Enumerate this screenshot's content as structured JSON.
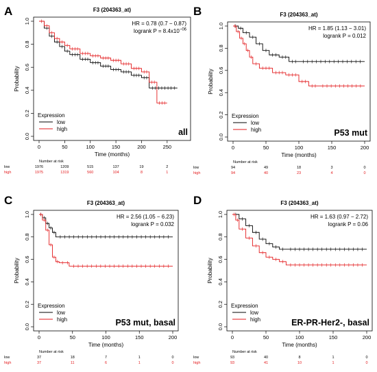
{
  "chart_data": [
    {
      "type": "line",
      "panel_letter": "A",
      "title": "F3 (204363_at)",
      "subtitle": "all",
      "xlabel": "Time (months)",
      "ylabel": "Probability",
      "x_ticks": [
        0,
        50,
        100,
        150,
        200,
        250
      ],
      "y_ticks": [
        "0.0",
        "0.2",
        "0.4",
        "0.6",
        "0.8",
        "1.0"
      ],
      "xlim": [
        0,
        285
      ],
      "ylim": [
        0,
        1
      ],
      "stats": {
        "hr": "HR = 0.78 (0.7 − 0.87)",
        "logrank": "logrank P = 8.4x10",
        "logrank_exp": "−06"
      },
      "legend": {
        "title": "Expression",
        "position": "bottom-left"
      },
      "series": [
        {
          "name": "low",
          "color": "#000000",
          "x": [
            0,
            10,
            20,
            30,
            40,
            50,
            60,
            80,
            100,
            120,
            140,
            160,
            180,
            200,
            215,
            270
          ],
          "y": [
            1.0,
            0.94,
            0.87,
            0.82,
            0.78,
            0.74,
            0.71,
            0.67,
            0.64,
            0.61,
            0.58,
            0.56,
            0.53,
            0.51,
            0.42,
            0.42
          ]
        },
        {
          "name": "high",
          "color": "#e31a1c",
          "x": [
            0,
            10,
            20,
            30,
            40,
            50,
            60,
            80,
            100,
            120,
            140,
            160,
            180,
            200,
            215,
            230,
            250
          ],
          "y": [
            1.0,
            0.96,
            0.9,
            0.85,
            0.82,
            0.79,
            0.76,
            0.72,
            0.7,
            0.68,
            0.66,
            0.63,
            0.59,
            0.56,
            0.47,
            0.29,
            0.29
          ]
        }
      ],
      "risk_table": {
        "header": "Number at risk",
        "low": [
          "1976",
          "1209",
          "515",
          "137",
          "19",
          "2"
        ],
        "high": [
          "1975",
          "1319",
          "560",
          "104",
          "8",
          "1"
        ]
      }
    },
    {
      "type": "line",
      "panel_letter": "B",
      "title": "F3 (204363_at)",
      "subtitle": "P53 mut",
      "xlabel": "Time (months)",
      "ylabel": "Probability",
      "x_ticks": [
        0,
        50,
        100,
        150,
        200
      ],
      "y_ticks": [
        "0.0",
        "0.2",
        "0.4",
        "0.6",
        "0.8",
        "1.0"
      ],
      "xlim": [
        0,
        200
      ],
      "ylim": [
        0,
        1
      ],
      "stats": {
        "hr": "HR = 1.85 (1.13 − 3.01)",
        "logrank": "logrank P = 0.012",
        "logrank_exp": ""
      },
      "legend": {
        "title": "Expression",
        "position": "bottom-left"
      },
      "series": [
        {
          "name": "low",
          "color": "#000000",
          "x": [
            0,
            8,
            15,
            25,
            35,
            45,
            55,
            70,
            85,
            100,
            200
          ],
          "y": [
            1.0,
            0.98,
            0.94,
            0.9,
            0.84,
            0.78,
            0.74,
            0.72,
            0.68,
            0.68,
            0.68
          ]
        },
        {
          "name": "high",
          "color": "#e31a1c",
          "x": [
            0,
            5,
            10,
            15,
            20,
            25,
            30,
            40,
            60,
            80,
            100,
            115,
            130,
            200
          ],
          "y": [
            1.0,
            0.95,
            0.89,
            0.84,
            0.78,
            0.72,
            0.66,
            0.62,
            0.58,
            0.56,
            0.5,
            0.46,
            0.46,
            0.46
          ]
        }
      ],
      "risk_table": {
        "header": "Number at risk",
        "low": [
          "94",
          "49",
          "18",
          "3",
          "0"
        ],
        "high": [
          "94",
          "40",
          "23",
          "4",
          "0"
        ]
      }
    },
    {
      "type": "line",
      "panel_letter": "C",
      "title": "F3 (204363_at)",
      "subtitle": "P53 mut, basal",
      "xlabel": "Time (months)",
      "ylabel": "Probability",
      "x_ticks": [
        0,
        50,
        100,
        150,
        200
      ],
      "y_ticks": [
        "0.0",
        "0.2",
        "0.4",
        "0.6",
        "0.8",
        "1.0"
      ],
      "xlim": [
        0,
        200
      ],
      "ylim": [
        0,
        1
      ],
      "stats": {
        "hr": "HR = 2.56 (1.05 − 6.23)",
        "logrank": "logrank P = 0.032",
        "logrank_exp": ""
      },
      "legend": {
        "title": "Expression",
        "position": "bottom-left"
      },
      "series": [
        {
          "name": "low",
          "color": "#000000",
          "x": [
            0,
            5,
            10,
            15,
            20,
            25,
            200
          ],
          "y": [
            1.0,
            0.97,
            0.92,
            0.88,
            0.84,
            0.8,
            0.8
          ]
        },
        {
          "name": "high",
          "color": "#e31a1c",
          "x": [
            0,
            5,
            10,
            15,
            20,
            25,
            30,
            40,
            45,
            200
          ],
          "y": [
            1.0,
            0.95,
            0.86,
            0.73,
            0.62,
            0.58,
            0.57,
            0.57,
            0.54,
            0.54
          ]
        }
      ],
      "risk_table": {
        "header": "Number at risk",
        "low": [
          "37",
          "18",
          "7",
          "1",
          "0"
        ],
        "high": [
          "37",
          "11",
          "6",
          "1",
          "0"
        ]
      }
    },
    {
      "type": "line",
      "panel_letter": "D",
      "title": "F3 (204363_at)",
      "subtitle": "ER-PR-Her2-, basal",
      "xlabel": "Time (months)",
      "ylabel": "Probability",
      "x_ticks": [
        0,
        50,
        100,
        150,
        200
      ],
      "y_ticks": [
        "0.0",
        "0.2",
        "0.4",
        "0.6",
        "0.8",
        "1.0"
      ],
      "xlim": [
        0,
        200
      ],
      "ylim": [
        0,
        1
      ],
      "stats": {
        "hr": "HR = 1.63 (0.97 − 2.72)",
        "logrank": "logrank P = 0.06",
        "logrank_exp": ""
      },
      "legend": {
        "title": "Expression",
        "position": "bottom-left"
      },
      "series": [
        {
          "name": "low",
          "color": "#000000",
          "x": [
            0,
            10,
            20,
            30,
            40,
            50,
            60,
            70,
            80,
            200
          ],
          "y": [
            1.0,
            0.96,
            0.9,
            0.84,
            0.78,
            0.74,
            0.71,
            0.69,
            0.69,
            0.69
          ]
        },
        {
          "name": "high",
          "color": "#e31a1c",
          "x": [
            0,
            5,
            10,
            20,
            30,
            40,
            50,
            60,
            70,
            80,
            200
          ],
          "y": [
            1.0,
            0.95,
            0.87,
            0.79,
            0.72,
            0.66,
            0.62,
            0.6,
            0.58,
            0.55,
            0.55
          ]
        }
      ],
      "risk_table": {
        "header": "Number at risk",
        "low": [
          "93",
          "40",
          "8",
          "1",
          "0"
        ],
        "high": [
          "93",
          "41",
          "10",
          "1",
          "0"
        ]
      }
    }
  ]
}
